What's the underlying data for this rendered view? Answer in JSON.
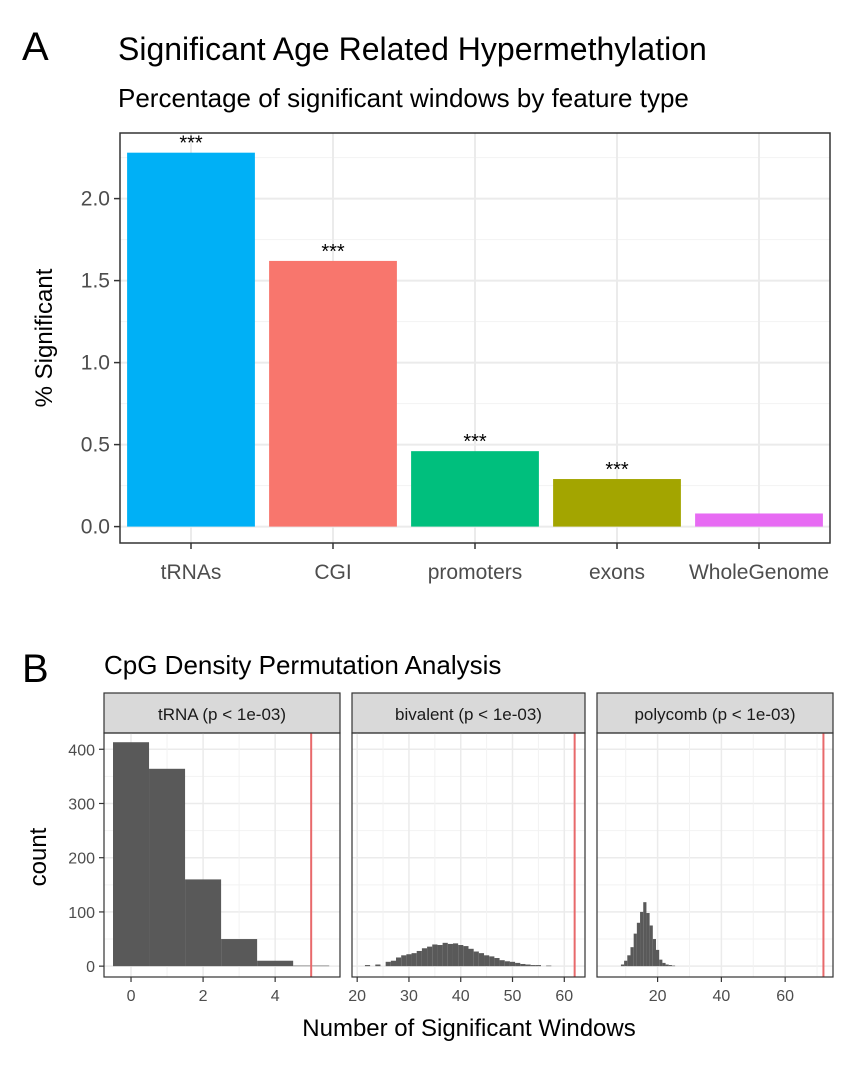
{
  "panel_a": {
    "letter": "A",
    "chart_data": {
      "type": "bar",
      "title": "Significant Age Related Hypermethylation",
      "subtitle": "Percentage of significant windows by feature type",
      "xlabel": "",
      "ylabel": "% Significant",
      "categories": [
        "tRNAs",
        "CGI",
        "promoters",
        "exons",
        "WholeGenome"
      ],
      "values": [
        2.28,
        1.62,
        0.46,
        0.29,
        0.08
      ],
      "significance": [
        "***",
        "***",
        "***",
        "***",
        ""
      ],
      "colors": [
        "#00B0F6",
        "#F8766D",
        "#00BF7D",
        "#A3A500",
        "#E76BF3"
      ],
      "ylim": [
        -0.1,
        2.4
      ],
      "yticks": [
        "0.0",
        "0.5",
        "1.0",
        "1.5",
        "2.0"
      ],
      "grid": true,
      "legend": "none"
    }
  },
  "panel_b": {
    "letter": "B",
    "title": "CpG Density Permutation Analysis",
    "ylabel": "count",
    "xlabel": "Number of Significant Windows",
    "yticks": [
      "0",
      "100",
      "200",
      "300",
      "400"
    ],
    "ylim": [
      -20,
      430
    ],
    "bar_color": "#595959",
    "observed_line_color": "#E8696B",
    "chart_data": [
      {
        "type": "bar",
        "facet": "tRNA (p < 1e-03)",
        "x": [
          0,
          1,
          2,
          3,
          4,
          5
        ],
        "values": [
          413,
          364,
          160,
          50,
          10,
          1
        ],
        "bin_width": 1,
        "observed": 5,
        "xlim": [
          -0.75,
          5.8
        ],
        "xticks": [
          "0",
          "2",
          "4"
        ]
      },
      {
        "type": "bar",
        "facet": "bivalent (p < 1e-03)",
        "x": [
          22,
          24,
          26,
          27,
          28,
          29,
          30,
          31,
          32,
          33,
          34,
          35,
          36,
          37,
          38,
          39,
          40,
          41,
          42,
          43,
          44,
          45,
          46,
          47,
          48,
          49,
          50,
          51,
          52,
          53,
          54,
          55,
          57
        ],
        "values": [
          2,
          3,
          8,
          10,
          16,
          20,
          22,
          24,
          28,
          33,
          36,
          40,
          39,
          43,
          41,
          42,
          39,
          37,
          32,
          27,
          24,
          20,
          18,
          15,
          11,
          9,
          8,
          6,
          4,
          3,
          2,
          2,
          1
        ],
        "bin_width": 1,
        "observed": 62,
        "xlim": [
          19,
          64
        ],
        "xticks": [
          "20",
          "30",
          "40",
          "50",
          "60"
        ]
      },
      {
        "type": "bar",
        "facet": "polycomb (p < 1e-03)",
        "x": [
          9,
          10,
          11,
          12,
          13,
          14,
          15,
          16,
          17,
          18,
          19,
          20,
          21,
          22,
          23,
          24,
          25
        ],
        "values": [
          3,
          10,
          20,
          35,
          60,
          80,
          100,
          118,
          98,
          75,
          50,
          30,
          12,
          6,
          3,
          2,
          1
        ],
        "bin_width": 1,
        "observed": 72,
        "xlim": [
          1,
          75
        ],
        "xticks": [
          "20",
          "40",
          "60"
        ]
      }
    ]
  }
}
